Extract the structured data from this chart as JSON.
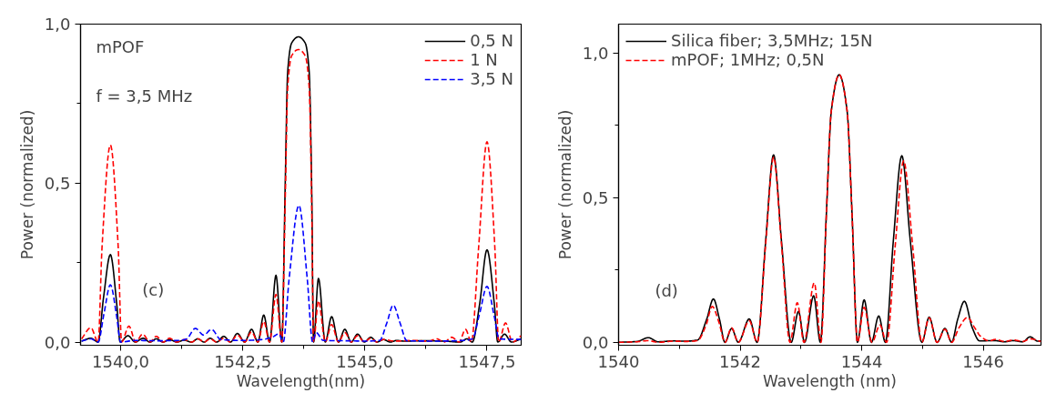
{
  "chart_data": [
    {
      "type": "line",
      "xlabel": "Wavelength(nm)",
      "ylabel": "Power (normalized)",
      "xlim": [
        1539.18,
        1548.2
      ],
      "ylim": [
        -0.01,
        1.0
      ],
      "xticks": [
        {
          "value": 1540,
          "label": "1540,0"
        },
        {
          "value": 1541.25,
          "label": null
        },
        {
          "value": 1542.5,
          "label": "1542,5"
        },
        {
          "value": 1543.75,
          "label": null
        },
        {
          "value": 1545,
          "label": "1545,0"
        },
        {
          "value": 1546.25,
          "label": null
        },
        {
          "value": 1547.5,
          "label": "1547,5"
        }
      ],
      "yticks": [
        {
          "value": 0,
          "label": "0,0"
        },
        {
          "value": 0.25,
          "label": null
        },
        {
          "value": 0.5,
          "label": "0,5"
        },
        {
          "value": 0.75,
          "label": null
        },
        {
          "value": 1.0,
          "label": "1,0"
        }
      ],
      "grid": false,
      "legend": "top right",
      "marker": "none",
      "annotations": [
        "mPOF",
        "f = 3,5 MHz",
        "(c)"
      ],
      "series": [
        {
          "name": "0,5 N",
          "color": "#000000",
          "line_style": "solid",
          "x": [
            1539.2,
            1539.39,
            1539.54,
            1539.65,
            1539.79,
            1539.92,
            1539.99,
            1540.15,
            1540.3,
            1540.46,
            1540.6,
            1540.73,
            1540.87,
            1541.0,
            1541.15,
            1541.3,
            1541.45,
            1541.58,
            1541.71,
            1541.83,
            1541.97,
            1542.11,
            1542.25,
            1542.39,
            1542.54,
            1542.68,
            1542.81,
            1542.93,
            1543.05,
            1543.18,
            1543.3,
            1543.37,
            1543.42,
            1543.5,
            1543.64,
            1543.78,
            1543.86,
            1543.91,
            1543.95,
            1544.05,
            1544.19,
            1544.32,
            1544.46,
            1544.59,
            1544.72,
            1544.85,
            1544.99,
            1545.12,
            1545.25,
            1545.38,
            1545.52,
            1545.65,
            1545.8,
            1546.2,
            1546.6,
            1546.95,
            1547.09,
            1547.2,
            1547.35,
            1547.5,
            1547.65,
            1547.72,
            1547.86,
            1548.0,
            1548.2
          ],
          "values": [
            0.003,
            0.012,
            0.0,
            0.14,
            0.275,
            0.12,
            0.0,
            0.02,
            0.0,
            0.012,
            0.0,
            0.01,
            0.0,
            0.008,
            0.0,
            0.006,
            0.0,
            0.01,
            0.0,
            0.012,
            0.0,
            0.018,
            0.0,
            0.027,
            0.0,
            0.04,
            0.0,
            0.085,
            0.0,
            0.21,
            0.0,
            0.5,
            0.85,
            0.94,
            0.96,
            0.94,
            0.85,
            0.5,
            0.0,
            0.2,
            0.0,
            0.08,
            0.0,
            0.04,
            0.0,
            0.025,
            0.0,
            0.015,
            0.0,
            0.008,
            0.0,
            0.005,
            0.003,
            0.004,
            0.003,
            0.0,
            0.01,
            0.0,
            0.12,
            0.29,
            0.12,
            0.0,
            0.025,
            0.0,
            0.01
          ]
        },
        {
          "name": "1 N",
          "color": "#ff0000",
          "line_style": "dashed",
          "x": [
            1539.2,
            1539.39,
            1539.54,
            1539.62,
            1539.79,
            1539.95,
            1540.02,
            1540.17,
            1540.31,
            1540.45,
            1540.6,
            1540.73,
            1540.87,
            1541.0,
            1541.15,
            1541.3,
            1541.45,
            1541.58,
            1541.71,
            1541.83,
            1541.97,
            1542.11,
            1542.25,
            1542.39,
            1542.54,
            1542.68,
            1542.81,
            1542.93,
            1543.05,
            1543.18,
            1543.3,
            1543.37,
            1543.42,
            1543.5,
            1543.64,
            1543.78,
            1543.86,
            1543.91,
            1543.95,
            1544.05,
            1544.19,
            1544.32,
            1544.46,
            1544.59,
            1544.72,
            1544.85,
            1544.99,
            1545.12,
            1545.25,
            1545.38,
            1545.6,
            1546.0,
            1546.3,
            1546.47,
            1546.62,
            1546.78,
            1546.93,
            1547.06,
            1547.18,
            1547.33,
            1547.5,
            1547.66,
            1547.74,
            1547.88,
            1548.02,
            1548.2
          ],
          "values": [
            0.01,
            0.045,
            0.0,
            0.3,
            0.62,
            0.3,
            0.0,
            0.05,
            0.0,
            0.025,
            0.0,
            0.018,
            0.0,
            0.012,
            0.0,
            0.008,
            0.0,
            0.01,
            0.0,
            0.01,
            0.0,
            0.012,
            0.0,
            0.022,
            0.0,
            0.032,
            0.0,
            0.065,
            0.0,
            0.15,
            0.0,
            0.45,
            0.8,
            0.9,
            0.92,
            0.9,
            0.8,
            0.45,
            0.0,
            0.13,
            0.0,
            0.055,
            0.0,
            0.03,
            0.0,
            0.02,
            0.0,
            0.012,
            0.0,
            0.008,
            0.003,
            0.005,
            0.003,
            0.01,
            0.0,
            0.015,
            0.0,
            0.04,
            0.0,
            0.3,
            0.63,
            0.3,
            0.0,
            0.06,
            0.0,
            0.02
          ]
        },
        {
          "name": "3,5 N",
          "color": "#0000ff",
          "line_style": "dashed",
          "x": [
            1539.2,
            1539.39,
            1539.54,
            1539.66,
            1539.79,
            1539.92,
            1540.0,
            1540.3,
            1540.8,
            1541.2,
            1541.35,
            1541.53,
            1541.7,
            1541.86,
            1542.05,
            1542.5,
            1542.9,
            1543.1,
            1543.24,
            1543.33,
            1543.45,
            1543.65,
            1543.82,
            1543.93,
            1544.0,
            1544.15,
            1544.6,
            1545.0,
            1545.3,
            1545.45,
            1545.58,
            1545.72,
            1545.86,
            1546.5,
            1547.0,
            1547.2,
            1547.35,
            1547.5,
            1547.65,
            1547.75,
            1548.2
          ],
          "values": [
            0.003,
            0.01,
            0.0,
            0.09,
            0.18,
            0.08,
            0.0,
            0.005,
            0.004,
            0.005,
            0.01,
            0.043,
            0.022,
            0.04,
            0.008,
            0.005,
            0.008,
            0.015,
            0.026,
            0.0,
            0.2,
            0.43,
            0.2,
            0.0,
            0.03,
            0.005,
            0.004,
            0.003,
            0.005,
            0.06,
            0.116,
            0.06,
            0.004,
            0.003,
            0.005,
            0.01,
            0.09,
            0.175,
            0.08,
            0.01,
            0.008
          ]
        }
      ]
    },
    {
      "type": "line",
      "xlabel": "Wavelength (nm)",
      "ylabel": "Power (normalized)",
      "xlim": [
        1540,
        1546.95
      ],
      "ylim": [
        -0.01,
        1.1
      ],
      "xticks": [
        1540,
        {
          "value": 1541,
          "label": null
        },
        1542,
        {
          "value": 1543,
          "label": null
        },
        1544,
        {
          "value": 1545,
          "label": null
        },
        1546
      ],
      "yticks": [
        {
          "value": 0,
          "label": "0,0"
        },
        {
          "value": 0.25,
          "label": null
        },
        {
          "value": 0.5,
          "label": "0,5"
        },
        {
          "value": 0.75,
          "label": null
        },
        {
          "value": 1.0,
          "label": "1,0"
        }
      ],
      "grid": false,
      "legend": "top left",
      "marker": "none",
      "annotations": [
        "(d)"
      ],
      "series": [
        {
          "name": "Silica fiber; 3,5MHz; 15N",
          "color": "#000000",
          "line_style": "solid",
          "x": [
            1540.0,
            1540.3,
            1540.49,
            1540.65,
            1540.9,
            1541.1,
            1541.3,
            1541.45,
            1541.56,
            1541.66,
            1541.75,
            1541.86,
            1541.97,
            1542.15,
            1542.28,
            1542.42,
            1542.55,
            1542.68,
            1542.84,
            1542.96,
            1543.06,
            1543.21,
            1543.32,
            1543.42,
            1543.5,
            1543.63,
            1543.76,
            1543.84,
            1543.93,
            1544.04,
            1544.16,
            1544.28,
            1544.39,
            1544.52,
            1544.66,
            1544.8,
            1544.99,
            1545.11,
            1545.24,
            1545.37,
            1545.48,
            1545.58,
            1545.69,
            1545.82,
            1545.94,
            1546.19,
            1546.35,
            1546.49,
            1546.65,
            1546.77,
            1546.9,
            1546.95
          ],
          "values": [
            0.0,
            0.003,
            0.016,
            0.002,
            0.005,
            0.004,
            0.008,
            0.08,
            0.15,
            0.08,
            0.0,
            0.048,
            0.0,
            0.081,
            0.0,
            0.35,
            0.648,
            0.35,
            0.0,
            0.107,
            0.0,
            0.161,
            0.0,
            0.45,
            0.8,
            0.925,
            0.8,
            0.45,
            0.0,
            0.147,
            0.0,
            0.091,
            0.0,
            0.35,
            0.645,
            0.35,
            0.0,
            0.087,
            0.0,
            0.048,
            0.0,
            0.08,
            0.142,
            0.05,
            0.005,
            0.006,
            0.002,
            0.006,
            0.002,
            0.019,
            0.004,
            0.005
          ]
        },
        {
          "name": "mPOF; 1MHz; 0,5N",
          "color": "#ff0000",
          "line_style": "dashed",
          "x": [
            1540.0,
            1540.3,
            1540.49,
            1540.65,
            1540.9,
            1541.1,
            1541.3,
            1541.44,
            1541.54,
            1541.65,
            1541.75,
            1541.86,
            1541.97,
            1542.15,
            1542.28,
            1542.42,
            1542.55,
            1542.68,
            1542.82,
            1542.94,
            1543.05,
            1543.22,
            1543.33,
            1543.42,
            1543.5,
            1543.63,
            1543.76,
            1543.84,
            1543.93,
            1544.04,
            1544.17,
            1544.3,
            1544.41,
            1544.55,
            1544.69,
            1544.84,
            1544.99,
            1545.11,
            1545.24,
            1545.37,
            1545.48,
            1545.6,
            1545.74,
            1545.86,
            1545.96,
            1546.1,
            1546.2,
            1546.35,
            1546.5,
            1546.65,
            1546.77,
            1546.95
          ],
          "values": [
            0.0,
            0.002,
            0.006,
            0.0,
            0.004,
            0.003,
            0.006,
            0.06,
            0.124,
            0.07,
            0.0,
            0.05,
            0.0,
            0.075,
            0.0,
            0.34,
            0.64,
            0.34,
            0.0,
            0.137,
            0.0,
            0.206,
            0.0,
            0.45,
            0.8,
            0.925,
            0.8,
            0.45,
            0.0,
            0.121,
            0.0,
            0.06,
            0.0,
            0.33,
            0.627,
            0.33,
            0.0,
            0.085,
            0.0,
            0.045,
            0.0,
            0.05,
            0.086,
            0.05,
            0.02,
            0.005,
            0.01,
            0.003,
            0.008,
            0.003,
            0.012,
            0.003
          ]
        }
      ]
    }
  ]
}
